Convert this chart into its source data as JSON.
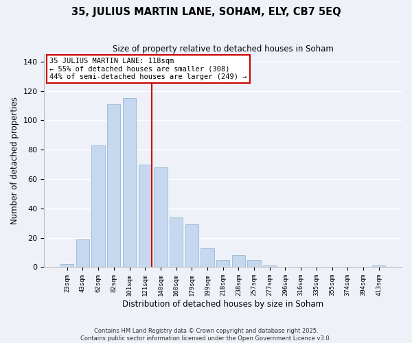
{
  "title": "35, JULIUS MARTIN LANE, SOHAM, ELY, CB7 5EQ",
  "subtitle": "Size of property relative to detached houses in Soham",
  "xlabel": "Distribution of detached houses by size in Soham",
  "ylabel": "Number of detached properties",
  "bar_labels": [
    "23sqm",
    "43sqm",
    "62sqm",
    "82sqm",
    "101sqm",
    "121sqm",
    "140sqm",
    "160sqm",
    "179sqm",
    "199sqm",
    "218sqm",
    "238sqm",
    "257sqm",
    "277sqm",
    "296sqm",
    "316sqm",
    "335sqm",
    "355sqm",
    "374sqm",
    "394sqm",
    "413sqm"
  ],
  "bar_values": [
    2,
    19,
    83,
    111,
    115,
    70,
    68,
    34,
    29,
    13,
    5,
    8,
    5,
    1,
    0,
    0,
    0,
    0,
    0,
    0,
    1
  ],
  "bar_color": "#c5d8f0",
  "bar_edge_color": "#a0bdd8",
  "vline_index": 5,
  "vline_color": "#cc0000",
  "ylim": [
    0,
    145
  ],
  "yticks": [
    0,
    20,
    40,
    60,
    80,
    100,
    120,
    140
  ],
  "annotation_line1": "35 JULIUS MARTIN LANE: 118sqm",
  "annotation_line2": "← 55% of detached houses are smaller (308)",
  "annotation_line3": "44% of semi-detached houses are larger (249) →",
  "annotation_box_color": "#ffffff",
  "annotation_box_edge": "#cc0000",
  "footer1": "Contains HM Land Registry data © Crown copyright and database right 2025.",
  "footer2": "Contains public sector information licensed under the Open Government Licence v3.0.",
  "bg_color": "#eef2f8",
  "grid_color": "#ffffff"
}
